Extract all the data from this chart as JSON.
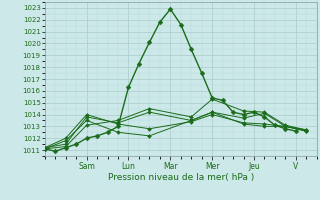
{
  "title": "",
  "xlabel": "Pression niveau de la mer( hPa )",
  "bg_color": "#cce8e8",
  "grid_color": "#aacccc",
  "grid_color_minor": "#bbdddd",
  "line_color": "#1a6b1a",
  "ylim": [
    1010.5,
    1023.5
  ],
  "yticks": [
    1011,
    1012,
    1013,
    1014,
    1015,
    1016,
    1017,
    1018,
    1019,
    1020,
    1021,
    1022,
    1023
  ],
  "x_day_labels": [
    "Sam",
    "Lun",
    "Mar",
    "Mer",
    "Jeu",
    "V"
  ],
  "x_day_positions": [
    2.0,
    4.0,
    6.0,
    8.0,
    10.0,
    12.0
  ],
  "xlim": [
    0,
    13.0
  ],
  "lines": [
    {
      "x": [
        0,
        0.5,
        1.0,
        1.5,
        2.0,
        2.5,
        3.0,
        3.5,
        4.0,
        4.5,
        5.0,
        5.5,
        6.0,
        6.5,
        7.0,
        7.5,
        8.0,
        8.5,
        9.0,
        9.5,
        10.0,
        10.5,
        11.0,
        11.5,
        12.0
      ],
      "y": [
        1011.1,
        1010.9,
        1011.2,
        1011.5,
        1012.0,
        1012.2,
        1012.5,
        1013.0,
        1016.3,
        1018.3,
        1020.1,
        1021.8,
        1022.9,
        1021.6,
        1019.5,
        1017.5,
        1015.4,
        1015.2,
        1014.2,
        1014.0,
        1014.2,
        1013.8,
        1013.1,
        1012.8,
        1012.6
      ],
      "has_markers": true
    },
    {
      "x": [
        0,
        1.0,
        2.0,
        3.5,
        5.0,
        7.0,
        8.0,
        9.5,
        10.5,
        11.5,
        12.5
      ],
      "y": [
        1011.1,
        1011.3,
        1013.1,
        1013.5,
        1014.5,
        1013.8,
        1015.3,
        1014.3,
        1014.2,
        1013.1,
        1012.7
      ],
      "has_markers": true
    },
    {
      "x": [
        0,
        1.0,
        2.0,
        3.5,
        5.0,
        7.0,
        8.0,
        9.5,
        10.5,
        11.5,
        12.5
      ],
      "y": [
        1011.2,
        1011.5,
        1013.8,
        1013.3,
        1014.2,
        1013.5,
        1014.2,
        1013.7,
        1014.1,
        1013.0,
        1012.6
      ],
      "has_markers": true
    },
    {
      "x": [
        0,
        1.0,
        2.0,
        3.5,
        5.0,
        7.0,
        8.0,
        9.5,
        10.5,
        11.5,
        12.5
      ],
      "y": [
        1011.1,
        1011.8,
        1013.5,
        1012.5,
        1012.2,
        1013.5,
        1014.2,
        1013.2,
        1013.0,
        1013.0,
        1012.7
      ],
      "has_markers": true
    },
    {
      "x": [
        0,
        1.0,
        2.0,
        3.5,
        5.0,
        7.0,
        8.0,
        9.5,
        10.5,
        11.5,
        12.5
      ],
      "y": [
        1011.2,
        1012.0,
        1014.0,
        1013.2,
        1012.8,
        1013.4,
        1014.0,
        1013.3,
        1013.2,
        1013.0,
        1012.6
      ],
      "has_markers": true
    }
  ],
  "marker_style": "D",
  "marker_size_main": 2.5,
  "marker_size_other": 2.0,
  "lw_main": 1.0,
  "lw_other": 0.7
}
